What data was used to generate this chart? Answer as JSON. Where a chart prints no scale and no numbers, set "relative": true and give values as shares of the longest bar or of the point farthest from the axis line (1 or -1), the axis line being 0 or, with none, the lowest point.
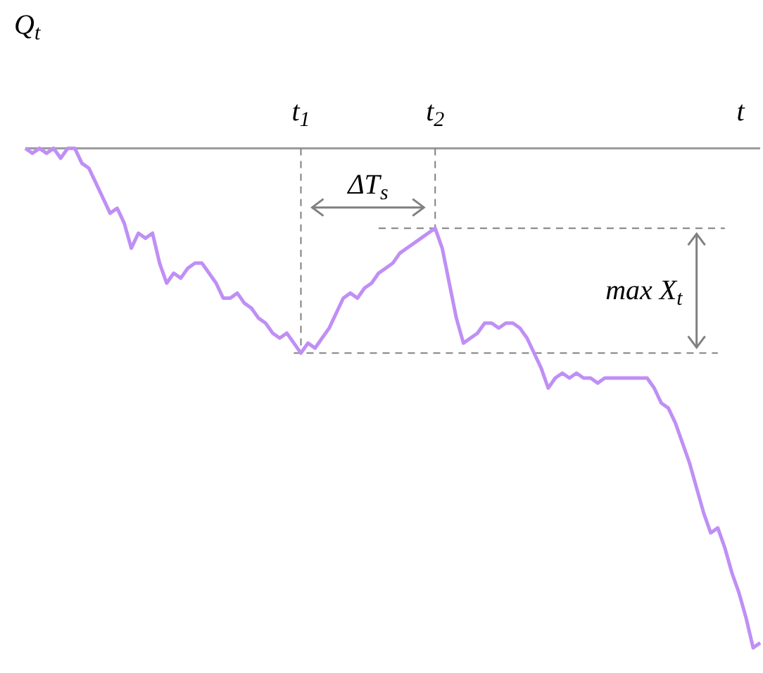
{
  "chart_data": {
    "type": "line",
    "relative": true,
    "marker": "none",
    "line_style": "solid",
    "xlabel": "t",
    "ylabel": "Q$_{t}$",
    "categories": [
      null,
      null,
      null,
      null,
      null,
      null,
      null,
      null,
      null,
      null,
      null,
      null,
      null,
      null,
      null,
      null,
      null,
      null,
      null,
      null,
      null,
      null,
      null,
      null,
      null,
      null,
      null,
      null,
      null,
      null,
      null,
      null,
      null,
      null,
      null,
      null,
      null,
      null,
      null,
      null,
      null,
      null,
      null,
      null,
      null,
      null,
      null,
      null,
      null,
      null,
      null,
      null,
      null,
      null,
      null,
      null,
      null,
      null,
      null,
      null,
      null,
      null,
      null,
      null,
      null,
      null,
      null,
      null,
      null,
      null,
      null,
      null,
      null,
      null,
      null,
      null,
      null,
      null,
      null,
      null,
      null,
      null,
      null,
      null,
      null,
      null,
      null,
      null,
      null,
      null,
      null,
      null,
      null,
      null,
      null,
      null,
      null,
      null,
      null,
      null,
      null,
      null,
      null,
      null,
      null
    ],
    "series": [
      {
        "color": "#bf8ff5",
        "values": [
          0,
          -0.01,
          0,
          -0.01,
          0,
          -0.02,
          0,
          0,
          -0.03,
          -0.04,
          -0.07,
          -0.1,
          -0.13,
          -0.12,
          -0.15,
          -0.2,
          -0.17,
          -0.18,
          -0.17,
          -0.23,
          -0.27,
          -0.25,
          -0.26,
          -0.24,
          -0.23,
          -0.23,
          -0.25,
          -0.27,
          -0.3,
          -0.3,
          -0.29,
          -0.31,
          -0.32,
          -0.34,
          -0.35,
          -0.37,
          -0.38,
          -0.37,
          -0.39,
          -0.41,
          -0.39,
          -0.4,
          -0.38,
          -0.36,
          -0.33,
          -0.3,
          -0.29,
          -0.3,
          -0.28,
          -0.27,
          -0.25,
          -0.24,
          -0.23,
          -0.21,
          -0.2,
          -0.19,
          -0.18,
          -0.17,
          -0.16,
          -0.2,
          -0.27,
          -0.34,
          -0.39,
          -0.38,
          -0.37,
          -0.35,
          -0.35,
          -0.36,
          -0.35,
          -0.35,
          -0.36,
          -0.38,
          -0.41,
          -0.44,
          -0.48,
          -0.46,
          -0.45,
          -0.46,
          -0.45,
          -0.46,
          -0.46,
          -0.47,
          -0.46,
          -0.46,
          -0.46,
          -0.46,
          -0.46,
          -0.46,
          -0.46,
          -0.48,
          -0.51,
          -0.52,
          -0.55,
          -0.59,
          -0.63,
          -0.68,
          -0.73,
          -0.77,
          -0.76,
          -0.8,
          -0.85,
          -0.89,
          -0.94,
          -1.0,
          -0.99
        ]
      }
    ],
    "ref_lines": [
      {
        "axis": "y",
        "value": -0.41,
        "color": "#808080",
        "line_style": "dashed"
      },
      {
        "axis": "y",
        "value": -0.16,
        "color": "#808080",
        "line_style": "dashed"
      }
    ],
    "annotations": [
      "t$_{1}$",
      "t$_{2}$",
      "ΔT$_{s}$",
      "max X$_{t}$"
    ]
  }
}
